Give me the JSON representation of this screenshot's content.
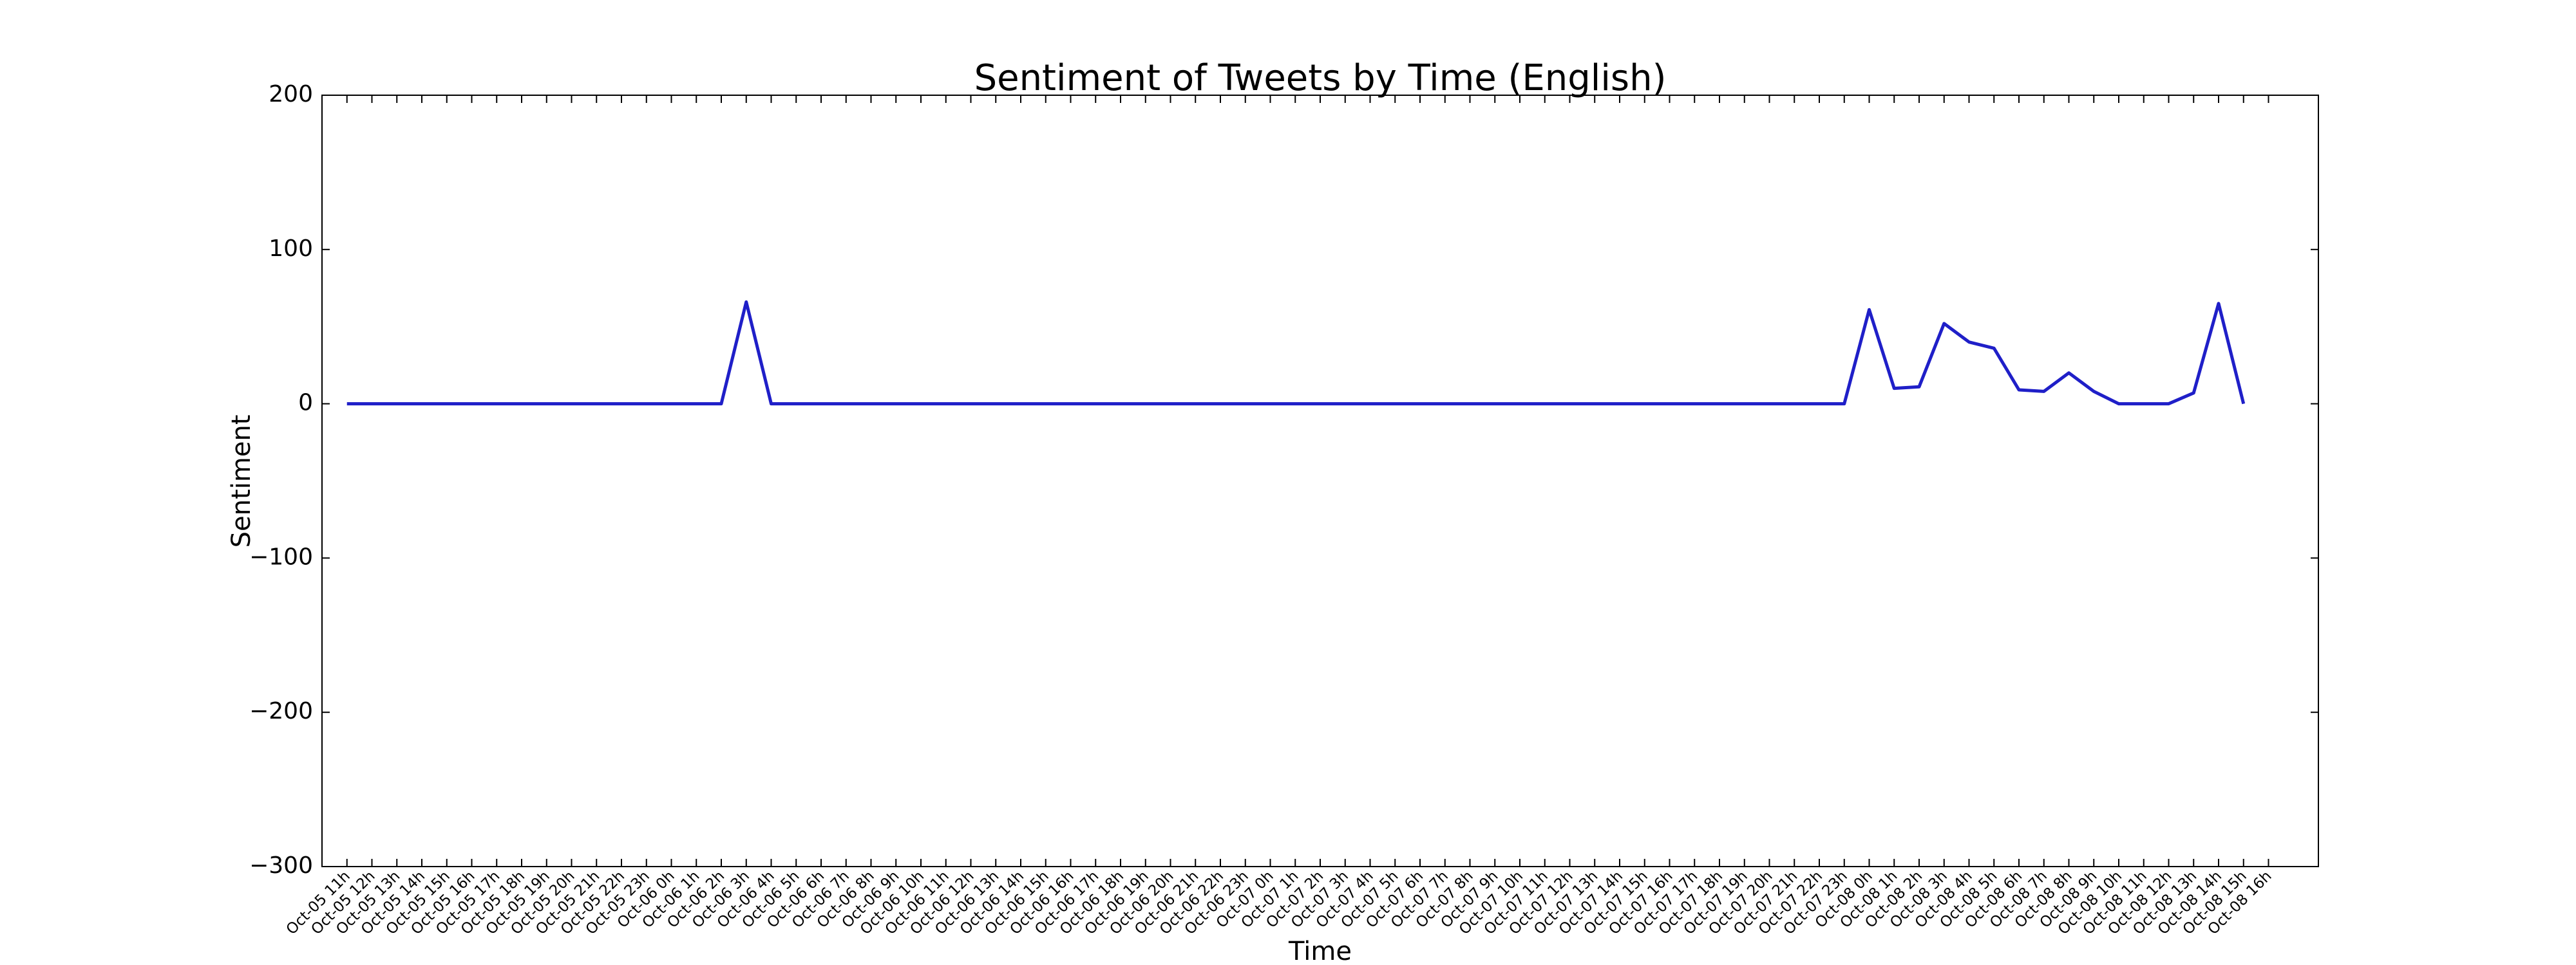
{
  "chart_data": {
    "type": "line",
    "title": "Sentiment of Tweets by Time (English)",
    "x_label": "Time",
    "y_label": "Sentiment",
    "categories": [
      "Oct-05 11h",
      "Oct-05 12h",
      "Oct-05 13h",
      "Oct-05 14h",
      "Oct-05 15h",
      "Oct-05 16h",
      "Oct-05 17h",
      "Oct-05 18h",
      "Oct-05 19h",
      "Oct-05 20h",
      "Oct-05 21h",
      "Oct-05 22h",
      "Oct-05 23h",
      "Oct-06 0h",
      "Oct-06 1h",
      "Oct-06 2h",
      "Oct-06 3h",
      "Oct-06 4h",
      "Oct-06 5h",
      "Oct-06 6h",
      "Oct-06 7h",
      "Oct-06 8h",
      "Oct-06 9h",
      "Oct-06 10h",
      "Oct-06 11h",
      "Oct-06 12h",
      "Oct-06 13h",
      "Oct-06 14h",
      "Oct-06 15h",
      "Oct-06 16h",
      "Oct-06 17h",
      "Oct-06 18h",
      "Oct-06 19h",
      "Oct-06 20h",
      "Oct-06 21h",
      "Oct-06 22h",
      "Oct-06 23h",
      "Oct-07 0h",
      "Oct-07 1h",
      "Oct-07 2h",
      "Oct-07 3h",
      "Oct-07 4h",
      "Oct-07 5h",
      "Oct-07 6h",
      "Oct-07 7h",
      "Oct-07 8h",
      "Oct-07 9h",
      "Oct-07 10h",
      "Oct-07 11h",
      "Oct-07 12h",
      "Oct-07 13h",
      "Oct-07 14h",
      "Oct-07 15h",
      "Oct-07 16h",
      "Oct-07 17h",
      "Oct-07 18h",
      "Oct-07 19h",
      "Oct-07 20h",
      "Oct-07 21h",
      "Oct-07 22h",
      "Oct-07 23h",
      "Oct-08 0h",
      "Oct-08 1h",
      "Oct-08 2h",
      "Oct-08 3h",
      "Oct-08 4h",
      "Oct-08 5h",
      "Oct-08 6h",
      "Oct-08 7h",
      "Oct-08 8h",
      "Oct-08 9h",
      "Oct-08 10h",
      "Oct-08 11h",
      "Oct-08 12h",
      "Oct-08 13h",
      "Oct-08 14h",
      "Oct-08 15h",
      "Oct-08 16h"
    ],
    "series": [
      {
        "name": "Sentiment",
        "color": "#1f1fc8",
        "values": [
          0,
          0,
          0,
          0,
          0,
          0,
          0,
          0,
          0,
          0,
          0,
          0,
          0,
          0,
          0,
          0,
          66,
          0,
          0,
          0,
          0,
          0,
          0,
          0,
          0,
          0,
          0,
          0,
          0,
          0,
          0,
          0,
          0,
          0,
          0,
          0,
          0,
          0,
          0,
          0,
          0,
          0,
          0,
          0,
          0,
          0,
          0,
          0,
          0,
          0,
          0,
          0,
          0,
          0,
          0,
          0,
          0,
          0,
          0,
          0,
          0,
          61,
          10,
          11,
          52,
          40,
          36,
          9,
          8,
          20,
          8,
          0,
          0,
          0,
          7,
          65,
          0,
          null
        ]
      }
    ],
    "ylim": [
      -300,
      200
    ],
    "yticks": [
      {
        "value": -300,
        "label": "−300"
      },
      {
        "value": -200,
        "label": "−200"
      },
      {
        "value": -100,
        "label": "−100"
      },
      0,
      100,
      200
    ],
    "grid": false
  }
}
